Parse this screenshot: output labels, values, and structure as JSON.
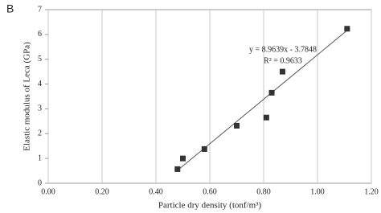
{
  "chart_data": {
    "type": "scatter",
    "panel_label": "B",
    "x_label": "Particle dry density  (tonf/m³)",
    "y_label": "Elastic modulus of Leca (GPa)",
    "series": [
      {
        "name": "Leca",
        "color": "#333333",
        "x": [
          0.48,
          0.5,
          0.58,
          0.7,
          0.81,
          0.83,
          0.87,
          1.11
        ],
        "values": [
          0.57,
          1.0,
          1.38,
          2.32,
          2.65,
          3.65,
          4.5,
          6.23
        ]
      }
    ],
    "trendline": {
      "slope": 8.9639,
      "intercept": -3.7848,
      "equation_label": "y = 8.9639x - 3.7848",
      "r2_label": "R² = 0.9633"
    },
    "xlim": [
      0,
      1.2
    ],
    "xticks": [
      {
        "value": 0,
        "label": "0.00"
      },
      {
        "value": 0.2,
        "label": "0.20"
      },
      {
        "value": 0.4,
        "label": "0.40"
      },
      {
        "value": 0.6,
        "label": "0.60"
      },
      {
        "value": 0.8,
        "label": "0.80"
      },
      {
        "value": 1.0,
        "label": "1.00"
      },
      {
        "value": 1.2,
        "label": "1.20"
      }
    ],
    "ylim": [
      0,
      7
    ],
    "yticks": [
      0,
      1,
      2,
      3,
      4,
      5,
      6,
      7
    ],
    "grid": true
  }
}
